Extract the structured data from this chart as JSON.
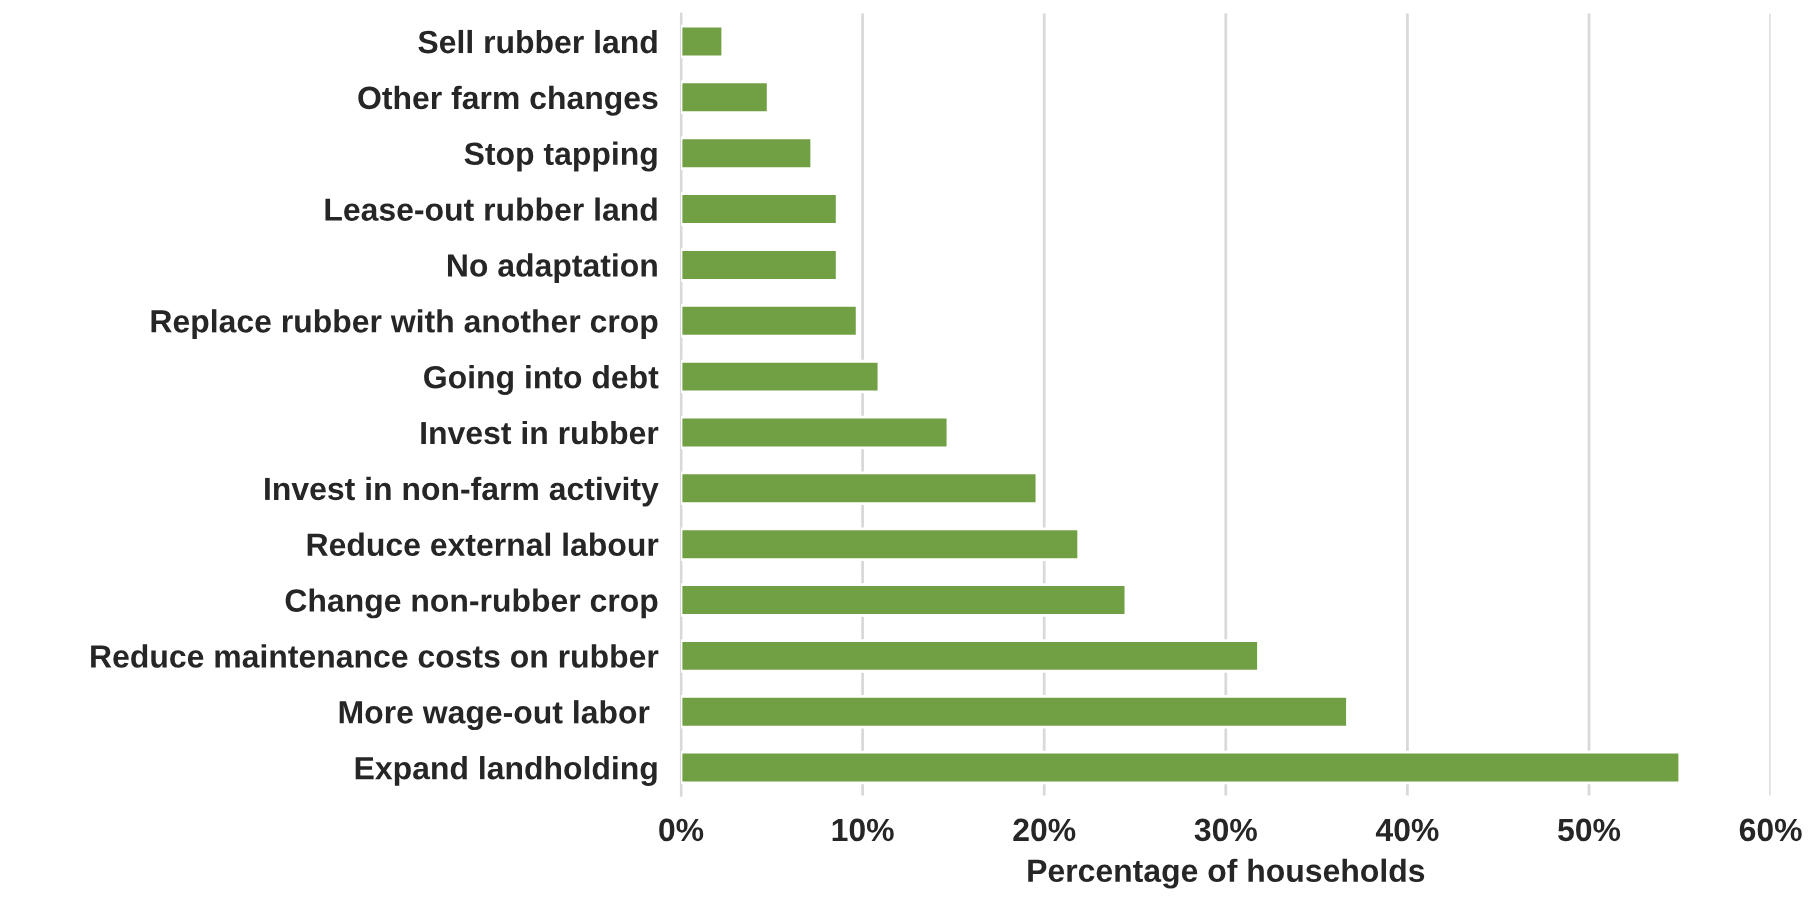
{
  "chart_data": {
    "type": "bar",
    "orientation": "horizontal",
    "xlabel": "Percentage of households",
    "categories": [
      "Sell rubber land",
      "Other farm changes",
      "Stop tapping",
      "Lease-out rubber land",
      "No adaptation",
      "Replace rubber with another crop",
      "Going into debt",
      "Invest in rubber",
      "Invest in non-farm activity",
      "Reduce external labour",
      "Change non-rubber crop",
      "Reduce maintenance costs on rubber",
      "More wage-out labor ",
      "Expand landholding"
    ],
    "values": [
      2.3,
      4.8,
      7.2,
      8.6,
      8.6,
      9.7,
      10.9,
      14.7,
      19.6,
      21.9,
      24.5,
      31.8,
      36.7,
      55.0
    ],
    "color": "#70a043",
    "xlim": [
      0,
      60
    ],
    "xticks": [
      {
        "value": 0,
        "label": "0%"
      },
      {
        "value": 10,
        "label": "10%"
      },
      {
        "value": 20,
        "label": "20%"
      },
      {
        "value": 30,
        "label": "30%"
      },
      {
        "value": 40,
        "label": "40%"
      },
      {
        "value": 50,
        "label": "50%"
      },
      {
        "value": 60,
        "label": "60%"
      }
    ],
    "grid": "x"
  }
}
